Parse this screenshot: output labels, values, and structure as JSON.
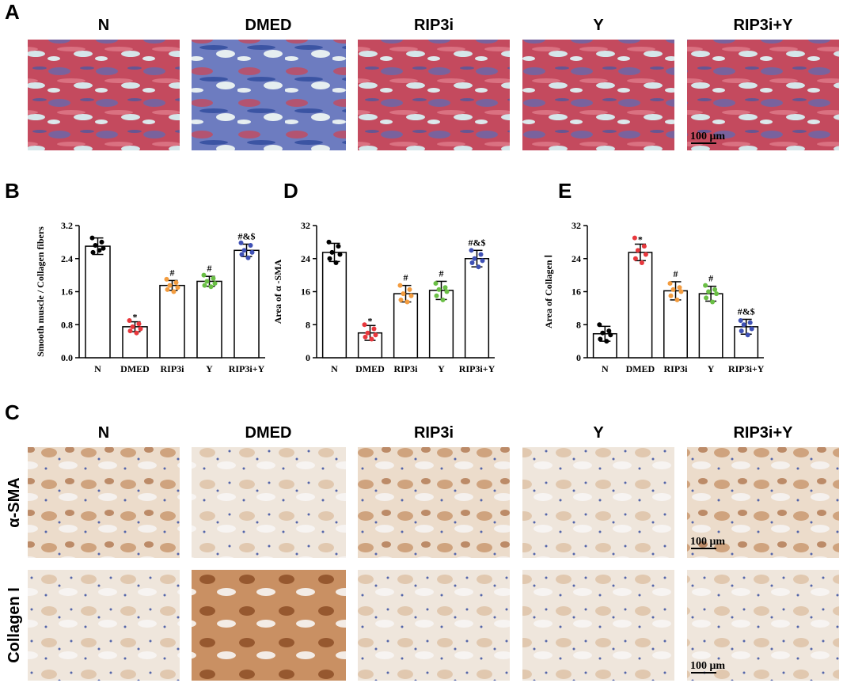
{
  "panel_labels": [
    "A",
    "B",
    "C",
    "D",
    "E"
  ],
  "groups_A": [
    "N",
    "DMED",
    "RIP3i",
    "Y",
    "RIP3i+Y"
  ],
  "groups_C": [
    "N",
    "DMED",
    "RIP3i",
    "Y",
    "RIP3i+Y"
  ],
  "rows_C": [
    "α-SMA",
    "Collagen I"
  ],
  "scale_bars": [
    "100 μm",
    "100 μm",
    "100 μm"
  ],
  "chart_data": [
    {
      "type": "bar",
      "ylabel": "Smooth muscle / Collagen fibers",
      "categories": [
        "N",
        "DMED",
        "RIP3i",
        "Y",
        "RIP3i+Y"
      ],
      "values": [
        2.7,
        0.75,
        1.75,
        1.85,
        2.6
      ],
      "errors": [
        0.2,
        0.12,
        0.12,
        0.12,
        0.15
      ],
      "points": [
        [
          2.9,
          2.8,
          2.72,
          2.65,
          2.55,
          2.6
        ],
        [
          0.9,
          0.82,
          0.75,
          0.7,
          0.65,
          0.6
        ],
        [
          1.9,
          1.82,
          1.75,
          1.7,
          1.65,
          1.6
        ],
        [
          2.0,
          1.92,
          1.85,
          1.8,
          1.75,
          1.72
        ],
        [
          2.78,
          2.72,
          2.6,
          2.55,
          2.5,
          2.42
        ]
      ],
      "point_colors": [
        "#000000",
        "#e8383d",
        "#f39c3f",
        "#6abf45",
        "#3f51b5"
      ],
      "annotations": [
        null,
        "*",
        "#",
        "#",
        "#&$"
      ],
      "ylim": [
        0,
        3.2
      ],
      "yticks": [
        {
          "value": 0,
          "label": "0.0"
        },
        0.8,
        1.6,
        2.4,
        3.2
      ]
    },
    {
      "type": "bar",
      "ylabel": "Area of α -SMA",
      "categories": [
        "N",
        "DMED",
        "RIP3i",
        "Y",
        "RIP3i+Y"
      ],
      "values": [
        25.5,
        6,
        15.5,
        16.3,
        24
      ],
      "errors": [
        2.2,
        1.8,
        2,
        2.2,
        2
      ],
      "points": [
        [
          28,
          27,
          25.5,
          25,
          24,
          23
        ],
        [
          8,
          7,
          6,
          5.5,
          5,
          4.5
        ],
        [
          17.5,
          16.5,
          15.5,
          15,
          14,
          13.5
        ],
        [
          18,
          17,
          16.5,
          16,
          15,
          14
        ],
        [
          26,
          25,
          24,
          23.5,
          23,
          22
        ]
      ],
      "point_colors": [
        "#000000",
        "#e8383d",
        "#f39c3f",
        "#6abf45",
        "#3f51b5"
      ],
      "annotations": [
        null,
        "*",
        "#",
        "#",
        "#&$"
      ],
      "ylim": [
        0,
        32
      ],
      "yticks": [
        0,
        8,
        16,
        24,
        32
      ]
    },
    {
      "type": "bar",
      "ylabel": "Area of Collagen Ⅰ",
      "categories": [
        "N",
        "DMED",
        "RIP3i",
        "Y",
        "RIP3i+Y"
      ],
      "values": [
        5.8,
        25.5,
        16.2,
        15.5,
        7.5
      ],
      "errors": [
        1.8,
        2,
        2.2,
        1.8,
        1.8
      ],
      "points": [
        [
          8,
          6.5,
          6,
          5.5,
          4.5,
          4
        ],
        [
          29,
          27,
          26,
          25,
          24,
          23
        ],
        [
          18,
          17,
          16.5,
          16,
          15,
          14
        ],
        [
          17.5,
          16.5,
          16,
          15.5,
          14.5,
          13.5
        ],
        [
          9,
          8.5,
          8,
          7,
          6.5,
          5.5
        ]
      ],
      "point_colors": [
        "#000000",
        "#e8383d",
        "#f39c3f",
        "#6abf45",
        "#3f51b5"
      ],
      "annotations": [
        null,
        "*",
        "#",
        "#",
        "#&$"
      ],
      "ylim": [
        0,
        32
      ],
      "yticks": [
        0,
        8,
        16,
        24,
        32
      ]
    }
  ]
}
